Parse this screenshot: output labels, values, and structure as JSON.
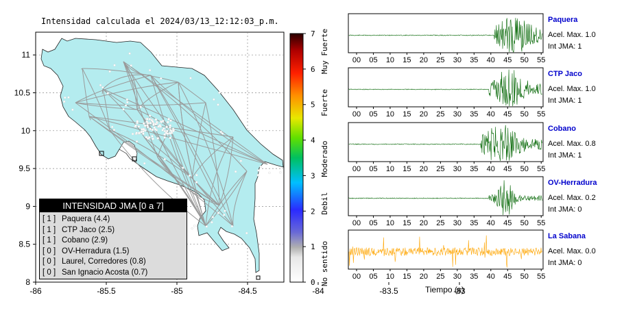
{
  "map": {
    "title": "Intensidad calculada el 2024/03/13_12:12:03_p.m.",
    "xticks": [
      "-86",
      "-85.5",
      "-85",
      "-84.5",
      "-84",
      "-83.5",
      "-83"
    ],
    "yticks": [
      "11",
      "10.5",
      "10",
      "9.5",
      "9",
      "8.5",
      "8"
    ],
    "land_color": "#b4ecef"
  },
  "colorbar": {
    "ticks": [
      "0",
      "1",
      "2",
      "3",
      "4",
      "5",
      "6",
      "7"
    ],
    "labels": [
      "No sentido",
      "Debil",
      "Moderado",
      "Fuerte",
      "Muy Fuerte"
    ]
  },
  "legend": {
    "title": "INTENSIDAD JMA [0 a 7]",
    "items": [
      {
        "level": "[ 1 ]",
        "name": "Paquera (4.4)"
      },
      {
        "level": "[ 1 ]",
        "name": "CTP Jaco (2.5)"
      },
      {
        "level": "[ 1 ]",
        "name": "Cobano (2.9)"
      },
      {
        "level": "[ 0 ]",
        "name": "OV-Herradura (1.5)"
      },
      {
        "level": "[ 0 ]",
        "name": "Laurel, Corredores (0.8)"
      },
      {
        "level": "[ 0 ]",
        "name": "San Ignacio Acosta (0.7)"
      }
    ]
  },
  "seismograms": [
    {
      "name": "Paquera",
      "accel": "Acel. Max. 1.0",
      "jma": "Int JMA: 1",
      "color": "#006400"
    },
    {
      "name": "CTP Jaco",
      "accel": "Acel. Max. 1.0",
      "jma": "Int JMA: 1",
      "color": "#006400"
    },
    {
      "name": "Cobano",
      "accel": "Acel. Max. 0.8",
      "jma": "Int JMA: 1",
      "color": "#006400"
    },
    {
      "name": "OV-Herradura",
      "accel": "Acel. Max. 0.2",
      "jma": "Int JMA: 0",
      "color": "#006400"
    },
    {
      "name": "La Sabana",
      "accel": "Acel. Max. 0.0",
      "jma": "Int JMA: 0",
      "color": "#ffa500"
    }
  ],
  "time_axis": {
    "ticks": [
      "00",
      "05",
      "10",
      "15",
      "20",
      "25",
      "30",
      "35",
      "40",
      "45",
      "50",
      "55"
    ],
    "label": "Tiempo (s)"
  },
  "chart_data": [
    {
      "type": "scatter",
      "title": "Intensidad calculada el 2024/03/13_12:12:03_p.m.",
      "xlabel": "",
      "ylabel": "",
      "xlim": [
        -86,
        -82.6
      ],
      "ylim": [
        8,
        11.3
      ],
      "grid": true,
      "legend": "bottom-left"
    },
    {
      "type": "line",
      "xlabel": "Tiempo (s)",
      "xlim": [
        -3,
        56
      ],
      "series": [
        {
          "name": "Paquera",
          "onset": 41
        },
        {
          "name": "CTP Jaco",
          "onset": 39.5
        },
        {
          "name": "Cobano",
          "onset": 37
        },
        {
          "name": "OV-Herradura",
          "onset": 39.5
        },
        {
          "name": "La Sabana",
          "onset": 0
        }
      ]
    }
  ]
}
